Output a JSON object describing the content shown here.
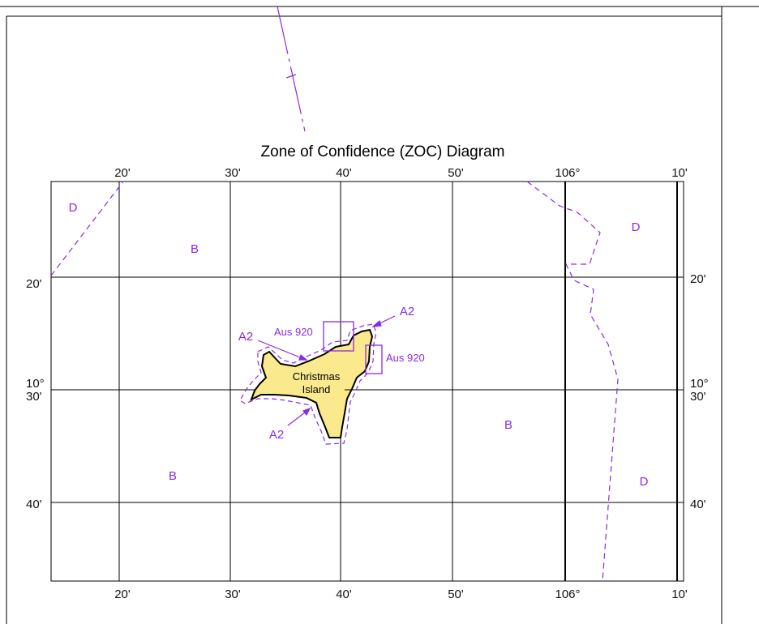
{
  "diagram": {
    "title": "Zone of Confidence (ZOC) Diagram",
    "top_labels": [
      "20'",
      "30'",
      "40'",
      "50'",
      "106°",
      "10'"
    ],
    "bottom_labels": [
      "20'",
      "30'",
      "40'",
      "50'",
      "106°",
      "10'"
    ],
    "left_labels": [
      "20'",
      "10°",
      "30'",
      "40'"
    ],
    "right_labels": [
      "20'",
      "10°",
      "30'",
      "40'"
    ],
    "zone_labels": {
      "d_nw": "D",
      "b_nw": "B",
      "d_ne": "D",
      "b_e": "B",
      "b_sw": "B",
      "d_se": "D",
      "a2_ne": "A2",
      "a2_w": "A2",
      "a2_sw": "A2"
    },
    "survey_labels": [
      "Aus 920",
      "Aus 920"
    ],
    "island_name": [
      "Christmas",
      "Island"
    ],
    "colors": {
      "zoc_line": "#8a2be2",
      "island_fill": "#fbe98d",
      "grid": "#000000"
    }
  }
}
